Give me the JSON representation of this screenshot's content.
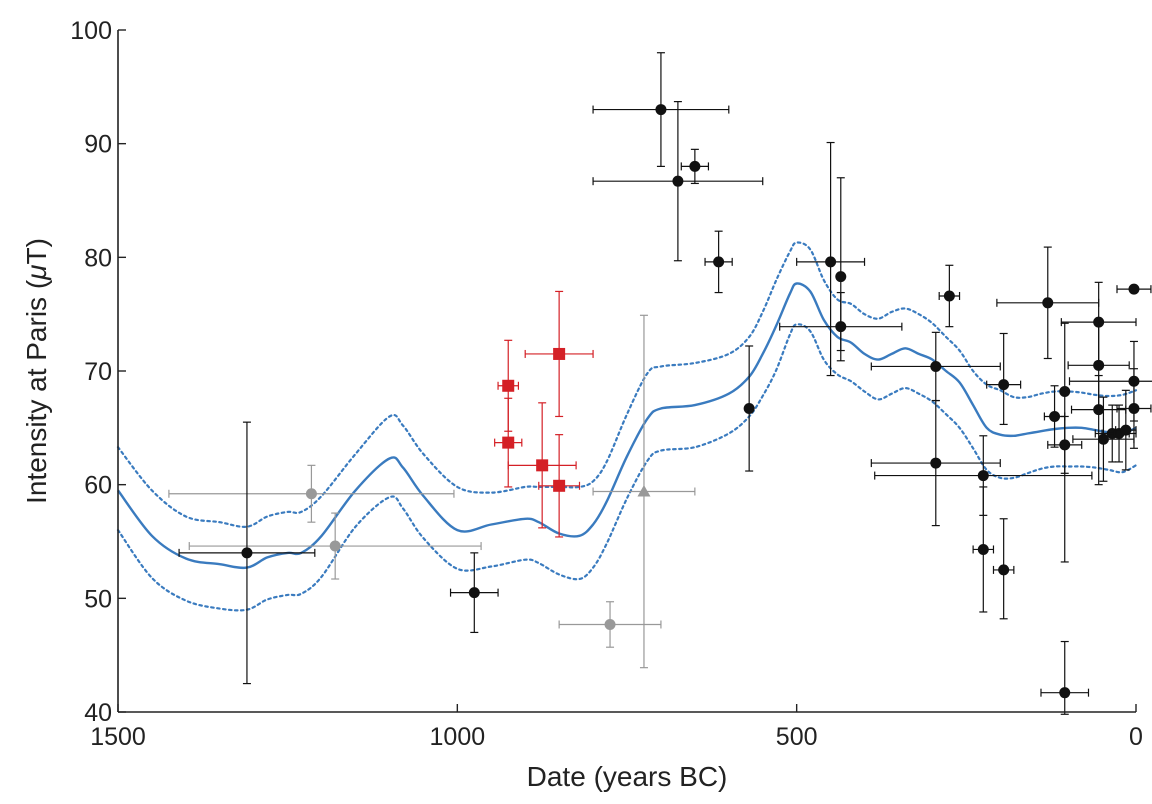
{
  "chart_data": {
    "type": "scatter",
    "xlabel": "Date (years BC)",
    "ylabel": "Intensity at Paris (",
    "ylabel_mu": "μ",
    "ylabel_unit": "T)",
    "xlim": [
      1500,
      0
    ],
    "ylim": [
      40,
      100
    ],
    "x_ticks": [
      1500,
      1000,
      500,
      0
    ],
    "y_ticks": [
      40,
      50,
      60,
      70,
      80,
      90,
      100
    ],
    "grid": false,
    "colors": {
      "black": "#111111",
      "gray": "#999999",
      "red": "#d42026",
      "curve": "#3a7bbf",
      "envelope": "#3a7bbf"
    },
    "series": [
      {
        "marker": "circle",
        "color": "black",
        "points": [
          {
            "x": 1310,
            "y": 54.0,
            "xerr": 100,
            "yerr_lo": 11.5,
            "yerr_hi": 11.5
          },
          {
            "x": 975,
            "y": 50.5,
            "xerr": 35,
            "yerr_lo": 3.5,
            "yerr_hi": 3.5
          },
          {
            "x": 700,
            "y": 93.0,
            "xerr": 100,
            "yerr_lo": 5.0,
            "yerr_hi": 5.0
          },
          {
            "x": 675,
            "y": 86.7,
            "xerr": 125,
            "yerr_lo": 7.0,
            "yerr_hi": 7.0
          },
          {
            "x": 650,
            "y": 88.0,
            "xerr": 20,
            "yerr_lo": 1.5,
            "yerr_hi": 1.5
          },
          {
            "x": 615,
            "y": 79.6,
            "xerr": 20,
            "yerr_lo": 2.7,
            "yerr_hi": 2.7
          },
          {
            "x": 570,
            "y": 66.7,
            "xerr": 0,
            "yerr_lo": 5.5,
            "yerr_hi": 5.5
          },
          {
            "x": 450,
            "y": 79.6,
            "xerr": 50,
            "yerr_lo": 10.0,
            "yerr_hi": 10.5
          },
          {
            "x": 435,
            "y": 78.3,
            "xerr": 0,
            "yerr_lo": 6.5,
            "yerr_hi": 8.7
          },
          {
            "x": 435,
            "y": 73.9,
            "xerr": 90,
            "yerr_lo": 3.0,
            "yerr_hi": 3.0
          },
          {
            "x": 295,
            "y": 70.4,
            "xerr": 95,
            "yerr_lo": 3.0,
            "yerr_hi": 3.0
          },
          {
            "x": 275,
            "y": 76.6,
            "xerr": 15,
            "yerr_lo": 2.7,
            "yerr_hi": 2.7
          },
          {
            "x": 295,
            "y": 61.9,
            "xerr": 95,
            "yerr_lo": 5.5,
            "yerr_hi": 5.5
          },
          {
            "x": 225,
            "y": 60.8,
            "xerr": 160,
            "yerr_lo": 3.5,
            "yerr_hi": 3.5
          },
          {
            "x": 225,
            "y": 54.3,
            "xerr": 15,
            "yerr_lo": 5.5,
            "yerr_hi": 5.5
          },
          {
            "x": 195,
            "y": 68.8,
            "xerr": 25,
            "yerr_lo": 3.5,
            "yerr_hi": 4.5
          },
          {
            "x": 195,
            "y": 52.5,
            "xerr": 15,
            "yerr_lo": 4.3,
            "yerr_hi": 4.5
          },
          {
            "x": 130,
            "y": 76.0,
            "xerr": 75,
            "yerr_lo": 4.9,
            "yerr_hi": 4.9
          },
          {
            "x": 120,
            "y": 66.0,
            "xerr": 15,
            "yerr_lo": 2.7,
            "yerr_hi": 2.7
          },
          {
            "x": 105,
            "y": 68.2,
            "xerr": 0,
            "yerr_lo": 15.0,
            "yerr_hi": 6.0
          },
          {
            "x": 105,
            "y": 63.5,
            "xerr": 25,
            "yerr_lo": 2.5,
            "yerr_hi": 2.5
          },
          {
            "x": 105,
            "y": 41.7,
            "xerr": 35,
            "yerr_lo": 1.9,
            "yerr_hi": 4.5
          },
          {
            "x": 55,
            "y": 74.3,
            "xerr": 55,
            "yerr_lo": 3.5,
            "yerr_hi": 3.5
          },
          {
            "x": 55,
            "y": 70.5,
            "xerr": 45,
            "yerr_lo": 4.0,
            "yerr_hi": 4.0
          },
          {
            "x": 55,
            "y": 66.6,
            "xerr": 40,
            "yerr_lo": 6.6,
            "yerr_hi": 3.0
          },
          {
            "x": 48,
            "y": 64.0,
            "xerr": 45,
            "yerr_lo": 3.7,
            "yerr_hi": 3.7
          },
          {
            "x": 35,
            "y": 64.5,
            "xerr": 25,
            "yerr_lo": 2.5,
            "yerr_hi": 2.5
          },
          {
            "x": 25,
            "y": 64.5,
            "xerr": 25,
            "yerr_lo": 2.5,
            "yerr_hi": 2.5
          },
          {
            "x": 15,
            "y": 64.8,
            "xerr": 15,
            "yerr_lo": 3.5,
            "yerr_hi": 3.5
          },
          {
            "x": 3,
            "y": 77.2,
            "xerr": 25,
            "yerr_lo": 0,
            "yerr_hi": 0
          },
          {
            "x": 3,
            "y": 69.1,
            "xerr": 95,
            "yerr_lo": 3.5,
            "yerr_hi": 3.5
          },
          {
            "x": 3,
            "y": 66.7,
            "xerr": 25,
            "yerr_lo": 3.5,
            "yerr_hi": 3.5
          }
        ]
      },
      {
        "marker": "circle",
        "color": "gray",
        "points": [
          {
            "x": 1215,
            "y": 59.2,
            "xerr": 210,
            "yerr_lo": 2.5,
            "yerr_hi": 2.5
          },
          {
            "x": 1180,
            "y": 54.6,
            "xerr": 215,
            "yerr_lo": 2.9,
            "yerr_hi": 2.9
          },
          {
            "x": 775,
            "y": 47.7,
            "xerr": 75,
            "yerr_lo": 2.0,
            "yerr_hi": 2.0
          }
        ]
      },
      {
        "marker": "triangle",
        "color": "gray",
        "points": [
          {
            "x": 725,
            "y": 59.4,
            "xerr": 75,
            "yerr_lo": 15.5,
            "yerr_hi": 15.5
          }
        ]
      },
      {
        "marker": "square",
        "color": "red",
        "points": [
          {
            "x": 925,
            "y": 68.7,
            "xerr": 15,
            "yerr_lo": 4.0,
            "yerr_hi": 4.0
          },
          {
            "x": 925,
            "y": 63.7,
            "xerr": 20,
            "yerr_lo": 3.9,
            "yerr_hi": 3.9
          },
          {
            "x": 875,
            "y": 61.7,
            "xerr": 50,
            "yerr_lo": 5.5,
            "yerr_hi": 5.5
          },
          {
            "x": 850,
            "y": 71.5,
            "xerr": 50,
            "yerr_lo": 5.5,
            "yerr_hi": 5.5
          },
          {
            "x": 850,
            "y": 59.9,
            "xerr": 30,
            "yerr_lo": 4.5,
            "yerr_hi": 4.5
          }
        ]
      }
    ],
    "curve": {
      "x": [
        1500,
        1450,
        1400,
        1350,
        1310,
        1280,
        1250,
        1230,
        1200,
        1150,
        1100,
        1080,
        1050,
        1000,
        950,
        900,
        880,
        850,
        820,
        800,
        780,
        750,
        720,
        700,
        650,
        600,
        570,
        550,
        530,
        510,
        500,
        480,
        460,
        440,
        420,
        400,
        380,
        360,
        340,
        320,
        300,
        280,
        260,
        240,
        220,
        200,
        180,
        160,
        140,
        120,
        100,
        80,
        60,
        40,
        20,
        0
      ],
      "y": [
        59.5,
        55.5,
        53.5,
        53.0,
        52.7,
        53.6,
        54.0,
        54.0,
        55.5,
        59.5,
        62.3,
        61.5,
        59.0,
        56.0,
        56.5,
        57.0,
        56.7,
        55.7,
        55.5,
        56.5,
        58.5,
        62.5,
        65.8,
        66.7,
        67.0,
        68.0,
        69.5,
        71.5,
        74.0,
        76.8,
        77.7,
        77.0,
        74.5,
        73.0,
        72.5,
        71.5,
        71.0,
        71.5,
        72.0,
        71.5,
        71.0,
        70.0,
        69.0,
        67.0,
        65.0,
        64.4,
        64.3,
        64.5,
        64.7,
        64.9,
        65.0,
        65.0,
        64.8,
        64.6,
        64.5,
        65.0
      ]
    },
    "envelope_upper": {
      "x": [
        1500,
        1450,
        1400,
        1350,
        1310,
        1280,
        1250,
        1230,
        1200,
        1150,
        1100,
        1080,
        1050,
        1000,
        950,
        900,
        880,
        850,
        820,
        800,
        780,
        750,
        720,
        700,
        650,
        600,
        570,
        550,
        530,
        510,
        500,
        480,
        460,
        440,
        420,
        400,
        380,
        360,
        340,
        320,
        300,
        280,
        260,
        240,
        220,
        200,
        180,
        160,
        140,
        120,
        100,
        80,
        60,
        40,
        20,
        0
      ],
      "y": [
        63.3,
        59.5,
        57.2,
        56.7,
        56.3,
        57.2,
        57.6,
        57.6,
        59.0,
        62.7,
        66.0,
        65.2,
        62.7,
        59.8,
        59.3,
        59.8,
        59.8,
        59.8,
        59.8,
        60.3,
        62.0,
        66.2,
        69.8,
        70.4,
        70.7,
        71.5,
        73.0,
        75.2,
        78.0,
        80.5,
        81.3,
        80.7,
        78.0,
        76.3,
        75.9,
        75.0,
        74.6,
        75.2,
        75.5,
        75.0,
        74.2,
        73.0,
        71.8,
        70.0,
        68.8,
        68.3,
        67.7,
        67.7,
        68.0,
        68.2,
        68.2,
        68.1,
        67.9,
        67.8,
        67.9,
        68.3
      ]
    },
    "envelope_lower": {
      "x": [
        1500,
        1450,
        1400,
        1350,
        1310,
        1280,
        1250,
        1230,
        1200,
        1150,
        1100,
        1080,
        1050,
        1000,
        950,
        900,
        880,
        850,
        820,
        800,
        780,
        750,
        720,
        700,
        650,
        600,
        570,
        550,
        530,
        510,
        500,
        480,
        460,
        440,
        420,
        400,
        380,
        360,
        340,
        320,
        300,
        280,
        260,
        240,
        220,
        200,
        180,
        160,
        140,
        120,
        100,
        80,
        60,
        40,
        20,
        0
      ],
      "y": [
        56.0,
        51.8,
        49.8,
        49.1,
        49.0,
        49.9,
        50.3,
        50.4,
        51.9,
        56.3,
        58.9,
        57.9,
        55.3,
        52.6,
        52.8,
        53.4,
        53.1,
        52.1,
        51.7,
        52.7,
        54.8,
        58.8,
        62.1,
        63.0,
        63.3,
        64.5,
        66.0,
        67.8,
        70.1,
        73.2,
        74.1,
        73.5,
        71.0,
        69.7,
        69.1,
        68.2,
        67.5,
        68.0,
        68.5,
        68.0,
        67.3,
        66.2,
        65.0,
        63.2,
        61.3,
        60.6,
        60.6,
        61.0,
        61.4,
        61.6,
        61.6,
        61.6,
        61.5,
        61.3,
        61.1,
        61.7
      ]
    }
  }
}
